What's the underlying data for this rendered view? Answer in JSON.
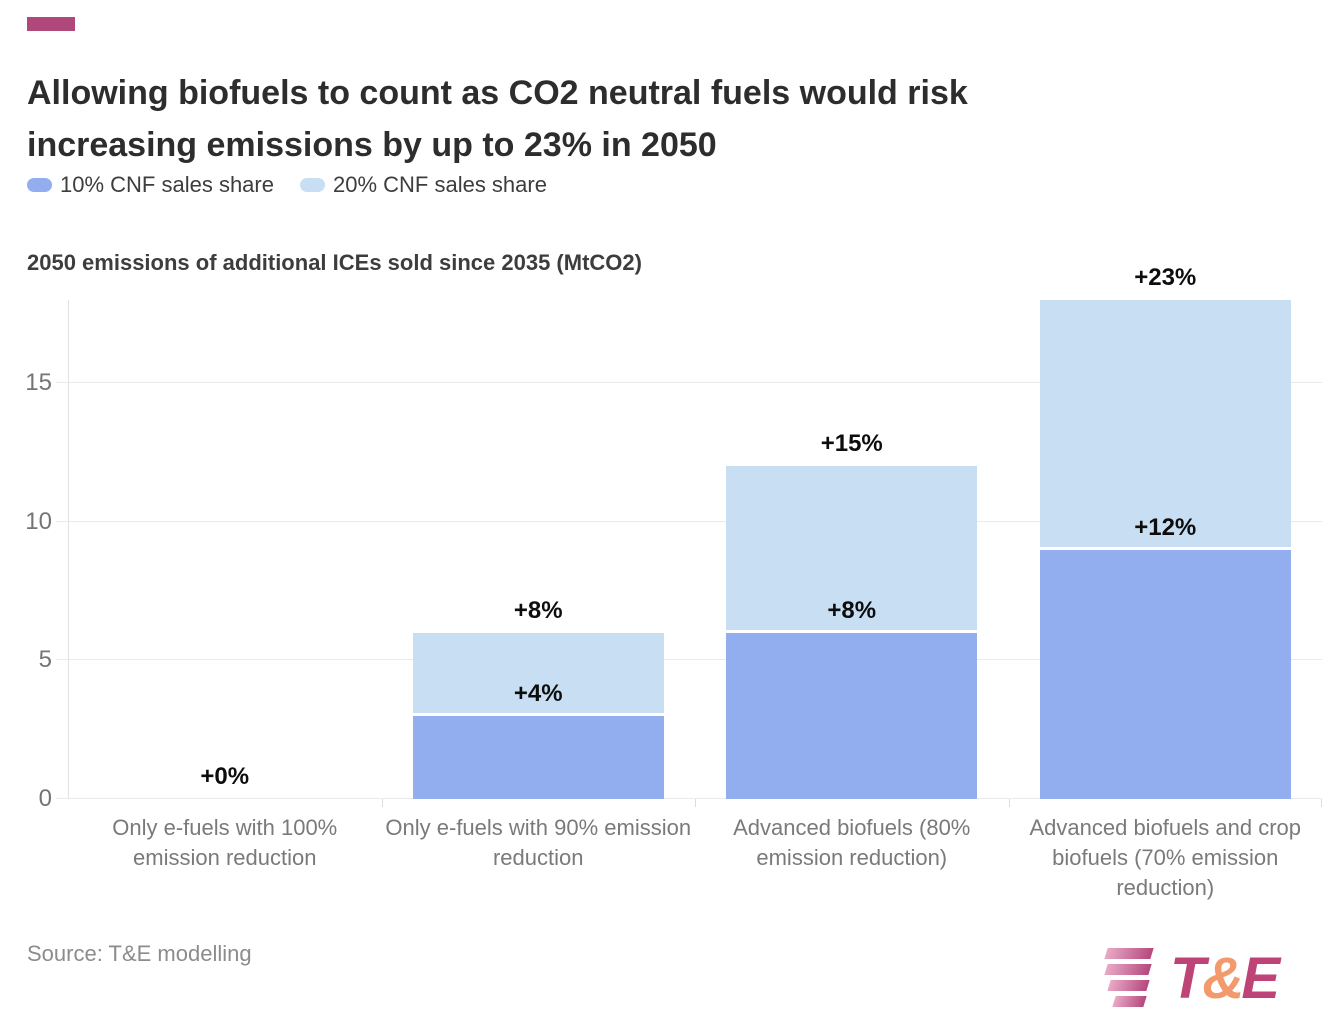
{
  "brand": {
    "accent_color": "#B0487B"
  },
  "header": {
    "title": "Allowing biofuels to count as CO2 neutral fuels would risk increasing emissions by up to 23% in 2050"
  },
  "legend": {
    "items": [
      {
        "label": "10% CNF sales share",
        "color": "#93AEEE"
      },
      {
        "label": "20% CNF sales share",
        "color": "#C8DFF3"
      }
    ]
  },
  "chart_data": {
    "type": "bar",
    "stacked": true,
    "title": "Allowing biofuels to count as CO2 neutral fuels would risk increasing emissions by up to 23% in 2050",
    "axis_title": "2050 emissions of additional ICEs sold since 2035 (MtCO2)",
    "categories": [
      "Only e-fuels with 100% emission reduction",
      "Only e-fuels with 90% emission reduction",
      "Advanced biofuels (80% emission reduction)",
      "Advanced biofuels and crop biofuels (70% emission reduction)"
    ],
    "series": [
      {
        "name": "10% CNF sales share",
        "color": "#93AEEE",
        "values": [
          0,
          3,
          6,
          9
        ],
        "labels": [
          "+0%",
          "+4%",
          "+8%",
          "+12%"
        ]
      },
      {
        "name": "20% CNF sales share",
        "color": "#C8DFF3",
        "values": [
          0,
          3,
          6,
          9
        ],
        "labels": [
          "",
          "+8%",
          "+15%",
          "+23%"
        ]
      }
    ],
    "stack_totals": [
      0,
      6,
      12,
      18
    ],
    "y_ticks": [
      0,
      5,
      10,
      15
    ],
    "ylim": [
      0,
      18
    ],
    "grid": "horizontal",
    "legend_position": "top",
    "unit": "MtCO2"
  },
  "footer": {
    "source": "Source: T&E modelling",
    "logo": {
      "t": "T",
      "amp": "&",
      "e": "E",
      "letter_color": "#BE4377",
      "amp_color": "#F29A6C"
    }
  }
}
